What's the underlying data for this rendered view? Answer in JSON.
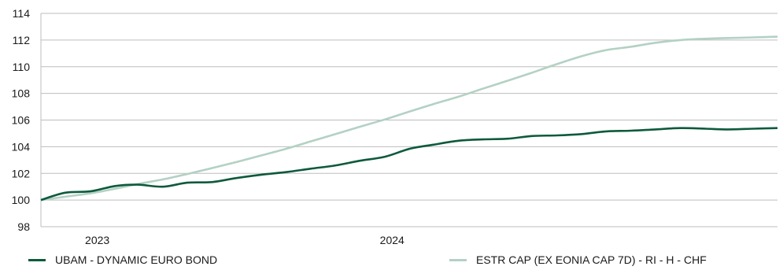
{
  "chart_data": {
    "type": "line",
    "title": "",
    "xlabel": "",
    "ylabel": "",
    "ylim": [
      98,
      114
    ],
    "yticks": [
      "98",
      "100",
      "102",
      "104",
      "106",
      "108",
      "110",
      "112",
      "114"
    ],
    "xticks": [
      {
        "label": "2023",
        "x": "2023-01-01"
      },
      {
        "label": "2024",
        "x": "2024-01-01"
      }
    ],
    "xlim": [
      "2022-10-31",
      "2025-04-30"
    ],
    "grid": "horizontal",
    "legend_position": "bottom",
    "series": [
      {
        "name": "UBAM - DYNAMIC EURO BOND",
        "color": "#0d5a3c",
        "x": [
          "2022-10-31",
          "2022-11-30",
          "2022-12-31",
          "2023-01-31",
          "2023-02-28",
          "2023-03-31",
          "2023-04-30",
          "2023-05-31",
          "2023-06-30",
          "2023-07-31",
          "2023-08-31",
          "2023-09-30",
          "2023-10-31",
          "2023-11-30",
          "2023-12-31",
          "2024-01-31",
          "2024-02-29",
          "2024-03-31",
          "2024-04-30",
          "2024-05-31",
          "2024-06-30",
          "2024-07-31",
          "2024-08-31",
          "2024-09-30",
          "2024-10-31",
          "2024-11-30",
          "2024-12-31",
          "2025-01-31",
          "2025-02-28",
          "2025-03-31",
          "2025-04-30"
        ],
        "values": [
          100.0,
          100.55,
          100.65,
          101.05,
          101.15,
          101.0,
          101.3,
          101.35,
          101.65,
          101.9,
          102.1,
          102.35,
          102.6,
          102.95,
          103.25,
          103.85,
          104.15,
          104.45,
          104.55,
          104.6,
          104.8,
          104.85,
          104.95,
          105.15,
          105.2,
          105.3,
          105.4,
          105.35,
          105.3,
          105.35,
          105.4
        ]
      },
      {
        "name": "ESTR CAP (EX EONIA CAP 7D) - RI - H  - CHF",
        "color": "#b3d1c4",
        "x": [
          "2022-10-31",
          "2022-11-30",
          "2022-12-31",
          "2023-01-31",
          "2023-02-28",
          "2023-03-31",
          "2023-04-30",
          "2023-05-31",
          "2023-06-30",
          "2023-07-31",
          "2023-08-31",
          "2023-09-30",
          "2023-10-31",
          "2023-11-30",
          "2023-12-31",
          "2024-01-31",
          "2024-02-29",
          "2024-03-31",
          "2024-04-30",
          "2024-05-31",
          "2024-06-30",
          "2024-07-31",
          "2024-08-31",
          "2024-09-30",
          "2024-10-31",
          "2024-11-30",
          "2024-12-31",
          "2025-01-31",
          "2025-02-28",
          "2025-03-31",
          "2025-04-30"
        ],
        "values": [
          100.0,
          100.25,
          100.5,
          100.85,
          101.2,
          101.55,
          101.95,
          102.4,
          102.85,
          103.35,
          103.85,
          104.4,
          104.95,
          105.5,
          106.05,
          106.65,
          107.2,
          107.75,
          108.35,
          108.95,
          109.55,
          110.2,
          110.8,
          111.25,
          111.5,
          111.8,
          112.0,
          112.1,
          112.15,
          112.2,
          112.25
        ]
      }
    ]
  }
}
